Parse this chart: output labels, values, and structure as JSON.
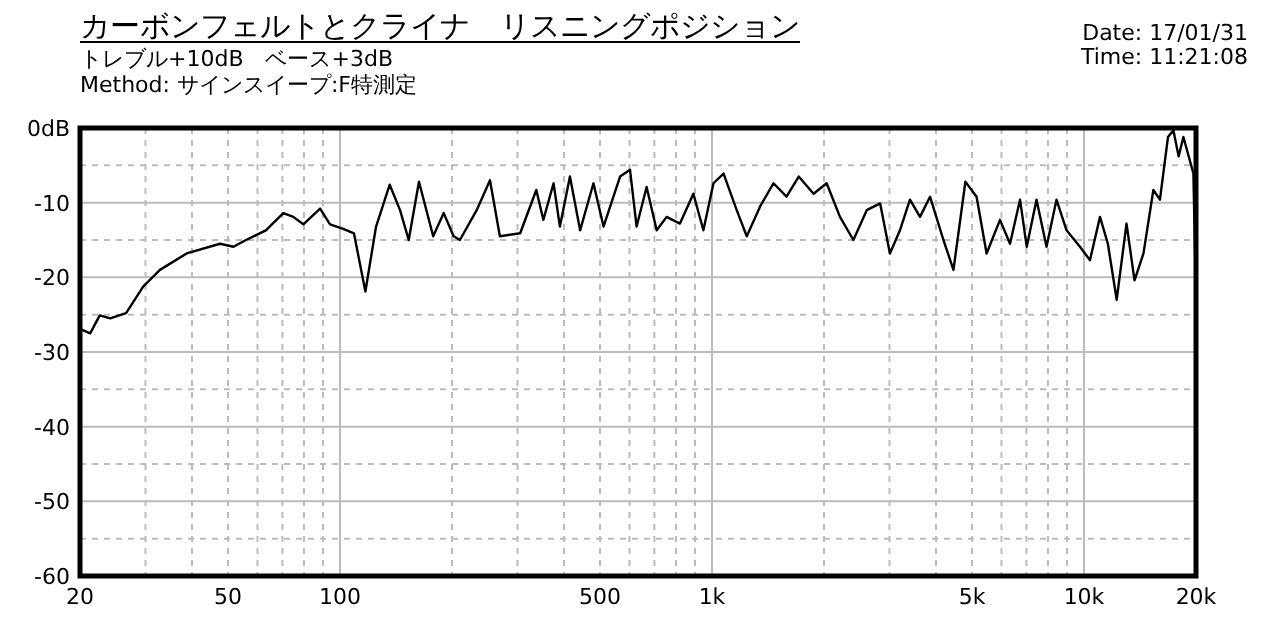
{
  "chart_data": {
    "type": "line",
    "title": "カーボンフェルトとクライナ　リスニングポジション",
    "subtitle": "トレブル+10dB　ベース+3dB",
    "annotations": [
      "Method: サインスイープ:F特測定",
      "Date: 17/01/31",
      "Time: 11:21:08"
    ],
    "log": "x",
    "xlim": [
      20,
      20000
    ],
    "ylim": [
      -60,
      0
    ],
    "xticks": [
      20,
      {
        "value": 30,
        "label": null
      },
      {
        "value": 40,
        "label": null
      },
      50,
      {
        "value": 60,
        "label": null
      },
      {
        "value": 70,
        "label": null
      },
      {
        "value": 80,
        "label": null
      },
      {
        "value": 90,
        "label": null
      },
      100,
      {
        "value": 200,
        "label": null
      },
      {
        "value": 300,
        "label": null
      },
      {
        "value": 400,
        "label": null
      },
      500,
      {
        "value": 600,
        "label": null
      },
      {
        "value": 700,
        "label": null
      },
      {
        "value": 800,
        "label": null
      },
      {
        "value": 900,
        "label": null
      },
      {
        "value": 1000,
        "label": "1k"
      },
      {
        "value": 2000,
        "label": null
      },
      {
        "value": 3000,
        "label": null
      },
      {
        "value": 4000,
        "label": null
      },
      {
        "value": 5000,
        "label": "5k"
      },
      {
        "value": 6000,
        "label": null
      },
      {
        "value": 7000,
        "label": null
      },
      {
        "value": 8000,
        "label": null
      },
      {
        "value": 9000,
        "label": null
      },
      {
        "value": 10000,
        "label": "10k"
      },
      {
        "value": 20000,
        "label": "20k"
      }
    ],
    "yticks": [
      {
        "value": 0,
        "label": "0dB"
      },
      {
        "value": -5,
        "label": null
      },
      -10,
      {
        "value": -15,
        "label": null
      },
      -20,
      {
        "value": -25,
        "label": null
      },
      -30,
      {
        "value": -35,
        "label": null
      },
      -40,
      {
        "value": -45,
        "label": null
      },
      -50,
      {
        "value": -55,
        "label": null
      },
      -60
    ],
    "grid": true,
    "marker": "none",
    "line_style": "solid",
    "series": [
      {
        "color": "#000000",
        "x": [
          20,
          21.3,
          22.6,
          24.1,
          26.6,
          29.6,
          32.8,
          38.7,
          47.6,
          51.7,
          55.9,
          63.2,
          70.4,
          74.9,
          79.7,
          88.4,
          94,
          102,
          109,
          117,
          125,
          136,
          145,
          153,
          163,
          178,
          190,
          202,
          210,
          233,
          253,
          269,
          305,
          337,
          352,
          375,
          390,
          415,
          442,
          480,
          511,
          566,
          602,
          627,
          667,
          710,
          755,
          820,
          891,
          948,
          1009,
          1074,
          1165,
          1240,
          1347,
          1463,
          1586,
          1710,
          1875,
          2033,
          2208,
          2399,
          2606,
          2831,
          3008,
          3200,
          3405,
          3623,
          3855,
          4189,
          4457,
          4799,
          5143,
          5472,
          5945,
          6325,
          6730,
          7015,
          7453,
          7930,
          8434,
          8975,
          9750,
          10375,
          11040,
          11590,
          12240,
          13010,
          13670,
          14450,
          15360,
          16000,
          16820,
          17390,
          17960,
          18500,
          19680,
          20000,
          20000
        ],
        "values": [
          -26.9,
          -27.5,
          -25.1,
          -25.5,
          -24.8,
          -21.2,
          -19,
          -16.8,
          -15.5,
          -15.9,
          -15,
          -13.7,
          -11.4,
          -11.9,
          -12.9,
          -10.8,
          -12.9,
          -13.5,
          -14.1,
          -21.9,
          -13.2,
          -7.6,
          -11,
          -15,
          -7.2,
          -14.5,
          -11.4,
          -14.5,
          -15,
          -11,
          -7,
          -14.5,
          -14.1,
          -8.3,
          -12.3,
          -7.4,
          -13.2,
          -6.5,
          -13.7,
          -7.4,
          -13.2,
          -6.5,
          -5.6,
          -13.2,
          -7.9,
          -13.7,
          -11.9,
          -12.8,
          -8.8,
          -13.7,
          -7.4,
          -6.1,
          -11,
          -14.5,
          -10.5,
          -7.4,
          -9.2,
          -6.5,
          -8.8,
          -7.4,
          -11.9,
          -15,
          -11,
          -10.1,
          -16.8,
          -13.7,
          -9.6,
          -11.9,
          -9.2,
          -15,
          -19,
          -7.2,
          -9.2,
          -16.8,
          -12.3,
          -15.5,
          -9.6,
          -15.9,
          -9.6,
          -15.9,
          -9.6,
          -13.7,
          -15.9,
          -17.7,
          -11.9,
          -15.5,
          -23,
          -12.8,
          -20.4,
          -16.8,
          -8.3,
          -9.6,
          -1.2,
          -0.3,
          -3.8,
          -1.2,
          -6.1,
          -23,
          -40
        ]
      }
    ]
  }
}
